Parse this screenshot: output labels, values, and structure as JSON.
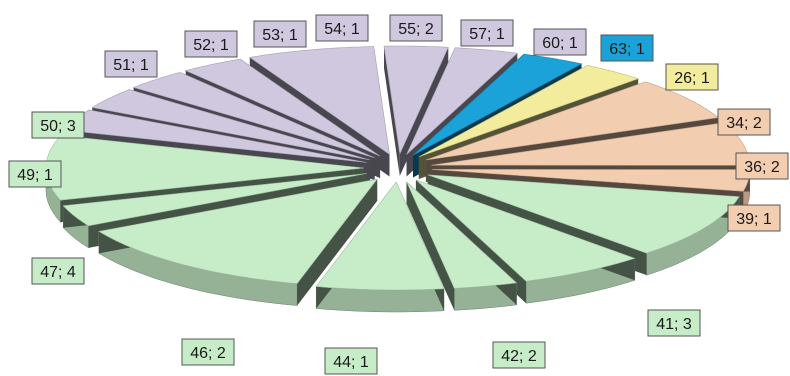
{
  "chart_data": {
    "type": "pie",
    "style": "exploded-3d",
    "slices": [
      {
        "label": "26",
        "value": 1,
        "text": "26; 1",
        "color": "#f2ec9c"
      },
      {
        "label": "34",
        "value": 2,
        "text": "34; 2",
        "color": "#f3cdb0"
      },
      {
        "label": "36",
        "value": 2,
        "text": "36; 2",
        "color": "#f3cdb0"
      },
      {
        "label": "39",
        "value": 1,
        "text": "39; 1",
        "color": "#f3cdb0"
      },
      {
        "label": "41",
        "value": 3,
        "text": "41; 3",
        "color": "#c6edc8"
      },
      {
        "label": "42",
        "value": 2,
        "text": "42; 2",
        "color": "#c6edc8"
      },
      {
        "label": "44",
        "value": 1,
        "text": "44; 1",
        "color": "#c6edc8"
      },
      {
        "label": "46",
        "value": 2,
        "text": "46; 2",
        "color": "#c6edc8"
      },
      {
        "label": "47",
        "value": 4,
        "text": "47; 4",
        "color": "#c6edc8"
      },
      {
        "label": "49",
        "value": 1,
        "text": "49; 1",
        "color": "#c6edc8"
      },
      {
        "label": "50",
        "value": 3,
        "text": "50; 3",
        "color": "#c6edc8"
      },
      {
        "label": "51",
        "value": 1,
        "text": "51; 1",
        "color": "#cfc8df"
      },
      {
        "label": "52",
        "value": 1,
        "text": "52; 1",
        "color": "#cfc8df"
      },
      {
        "label": "53",
        "value": 1,
        "text": "53; 1",
        "color": "#cfc8df"
      },
      {
        "label": "54",
        "value": 1,
        "text": "54; 1",
        "color": "#cfc8df"
      },
      {
        "label": "55",
        "value": 2,
        "text": "55; 2",
        "color": "#cfc8df"
      },
      {
        "label": "57",
        "value": 1,
        "text": "57; 1",
        "color": "#cfc8df"
      },
      {
        "label": "60",
        "value": 1,
        "text": "60; 1",
        "color": "#cfc8df"
      },
      {
        "label": "63",
        "value": 1,
        "text": "63; 1",
        "color": "#1ba2d8"
      }
    ]
  }
}
